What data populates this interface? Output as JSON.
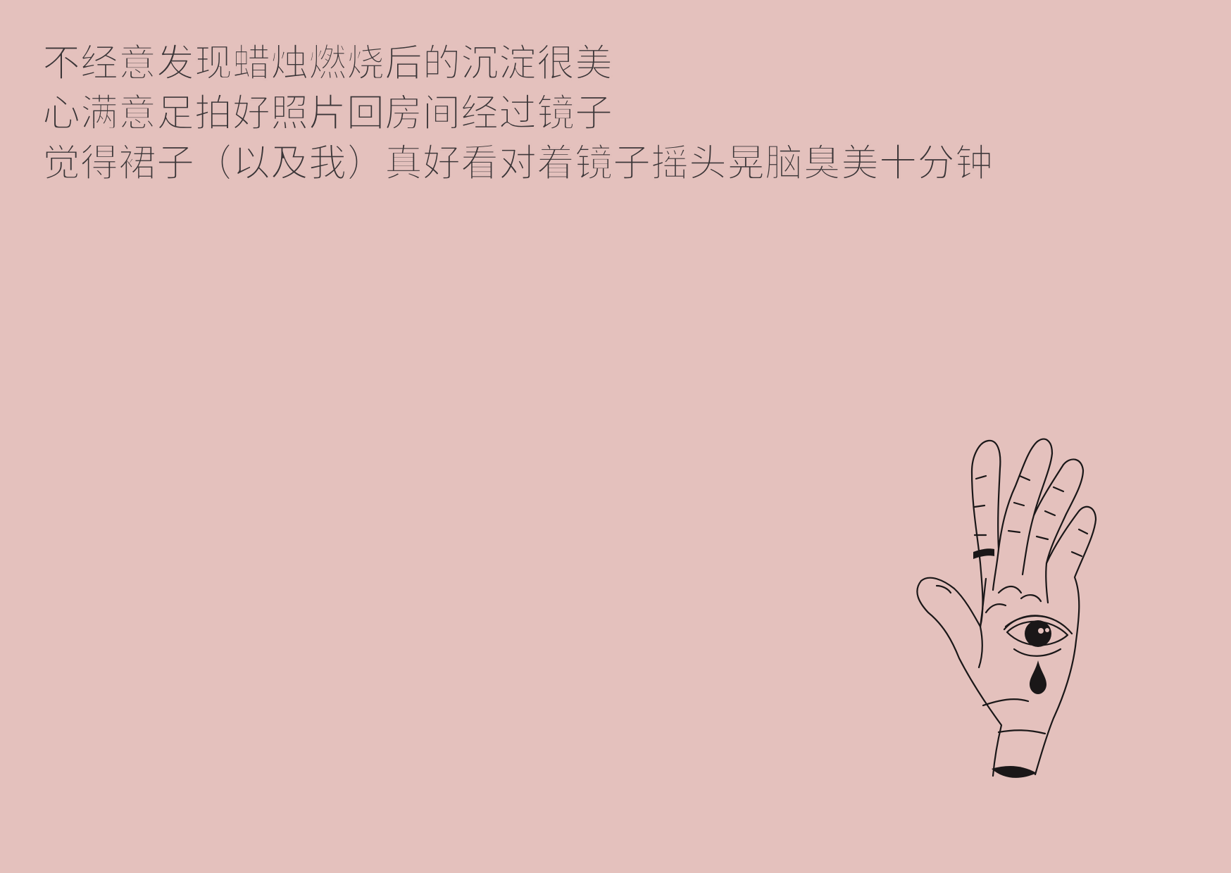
{
  "poem": {
    "lines": [
      "不经意发现蜡烛燃烧后的沉淀很美",
      "心满意足拍好照片回房间经过镜子",
      "觉得裙子（以及我）真好看对着镜子摇头晃脑臭美十分钟"
    ]
  },
  "illustration": {
    "icon": "hand-with-eye-icon"
  },
  "colors": {
    "background": "#e4c1bd",
    "text": "#3a3537",
    "ink": "#1a1718"
  }
}
